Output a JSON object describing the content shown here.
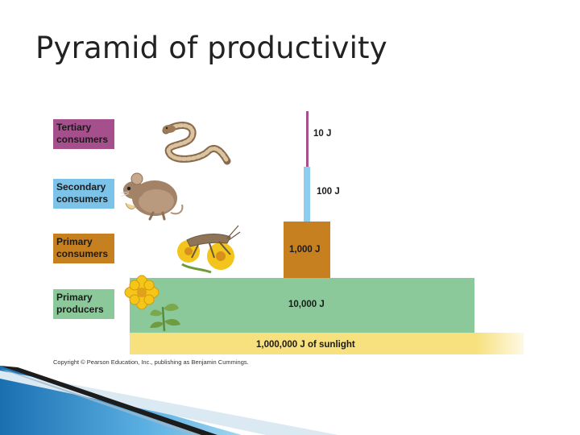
{
  "title": "Pyramid of productivity",
  "levels": [
    {
      "label_line1": "Tertiary",
      "label_line2": "consumers",
      "energy": "10 J",
      "label_color": "#a54f8c",
      "bar_color": "#a54f8c",
      "organism": "snake-icon"
    },
    {
      "label_line1": "Secondary",
      "label_line2": "consumers",
      "energy": "100 J",
      "label_color": "#7cc3ea",
      "bar_color": "#8ccdf0",
      "organism": "mouse-icon"
    },
    {
      "label_line1": "Primary",
      "label_line2": "consumers",
      "energy": "1,000 J",
      "label_color": "#c7801f",
      "bar_color": "#c7801f",
      "organism": "grasshopper-icon"
    },
    {
      "label_line1": "Primary",
      "label_line2": "producers",
      "energy": "10,000 J",
      "label_color": "#8bc99b",
      "bar_color": "#8bc99b",
      "organism": "plant-icon"
    }
  ],
  "sunlight": {
    "label": "1,000,000 J of sunlight",
    "color": "#f7e17e"
  },
  "copyright": "Copyright © Pearson Education, Inc., publishing as Benjamin Cummings."
}
